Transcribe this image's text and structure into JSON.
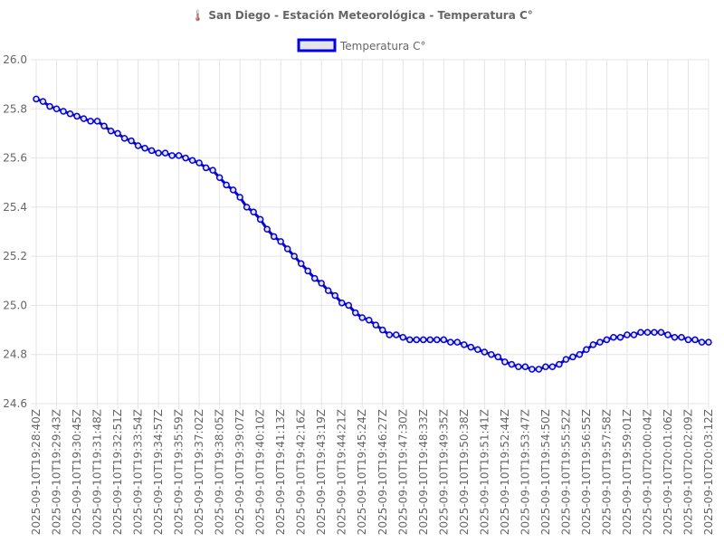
{
  "chart_data": {
    "type": "line",
    "title": "🌡️ San Diego - Estación Meteorológica - Temperatura C°",
    "legend": {
      "position": "top",
      "entries": [
        "Temperatura C°"
      ]
    },
    "xlabel": "",
    "ylabel": "",
    "ylim": [
      24.6,
      26.0
    ],
    "y_ticks": [
      "26.0",
      "25.8",
      "25.6",
      "25.4",
      "25.2",
      "25.0",
      "24.8",
      "24.6"
    ],
    "grid": true,
    "x_tick_labels": [
      "2025-09-10T19:28:40Z",
      "2025-09-10T19:29:43Z",
      "2025-09-10T19:30:45Z",
      "2025-09-10T19:31:48Z",
      "2025-09-10T19:32:51Z",
      "2025-09-10T19:33:54Z",
      "2025-09-10T19:34:57Z",
      "2025-09-10T19:35:59Z",
      "2025-09-10T19:37:02Z",
      "2025-09-10T19:38:05Z",
      "2025-09-10T19:39:07Z",
      "2025-09-10T19:40:10Z",
      "2025-09-10T19:41:13Z",
      "2025-09-10T19:42:16Z",
      "2025-09-10T19:43:19Z",
      "2025-09-10T19:44:21Z",
      "2025-09-10T19:45:24Z",
      "2025-09-10T19:46:27Z",
      "2025-09-10T19:47:30Z",
      "2025-09-10T19:48:33Z",
      "2025-09-10T19:49:35Z",
      "2025-09-10T19:50:38Z",
      "2025-09-10T19:51:41Z",
      "2025-09-10T19:52:44Z",
      "2025-09-10T19:53:47Z",
      "2025-09-10T19:54:50Z",
      "2025-09-10T19:55:52Z",
      "2025-09-10T19:56:55Z",
      "2025-09-10T19:57:58Z",
      "2025-09-10T19:59:01Z",
      "2025-09-10T20:00:04Z",
      "2025-09-10T20:01:06Z",
      "2025-09-10T20:02:09Z",
      "2025-09-10T20:03:12Z"
    ],
    "series": [
      {
        "name": "Temperatura C°",
        "color": "#0000ee",
        "fill": "#e6e6e6",
        "values": [
          25.84,
          25.83,
          25.81,
          25.8,
          25.79,
          25.78,
          25.77,
          25.76,
          25.75,
          25.75,
          25.73,
          25.71,
          25.7,
          25.68,
          25.67,
          25.65,
          25.64,
          25.63,
          25.62,
          25.62,
          25.61,
          25.61,
          25.6,
          25.59,
          25.58,
          25.56,
          25.55,
          25.52,
          25.49,
          25.47,
          25.44,
          25.4,
          25.38,
          25.35,
          25.31,
          25.28,
          25.26,
          25.23,
          25.2,
          25.17,
          25.14,
          25.11,
          25.09,
          25.06,
          25.04,
          25.01,
          25.0,
          24.97,
          24.95,
          24.94,
          24.92,
          24.9,
          24.88,
          24.88,
          24.87,
          24.86,
          24.86,
          24.86,
          24.86,
          24.86,
          24.86,
          24.85,
          24.85,
          24.84,
          24.83,
          24.82,
          24.81,
          24.8,
          24.79,
          24.77,
          24.76,
          24.75,
          24.75,
          24.74,
          24.74,
          24.75,
          24.75,
          24.76,
          24.78,
          24.79,
          24.8,
          24.82,
          24.84,
          24.85,
          24.86,
          24.87,
          24.87,
          24.88,
          24.88,
          24.89,
          24.89,
          24.89,
          24.89,
          24.88,
          24.87,
          24.87,
          24.86,
          24.86,
          24.85,
          24.85
        ]
      }
    ]
  }
}
